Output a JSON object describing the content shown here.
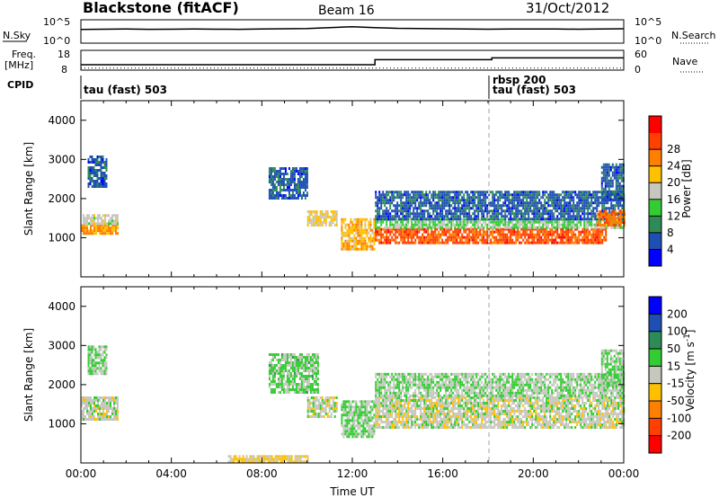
{
  "header": {
    "station": "Blackstone (fitACF)",
    "beam": "Beam 16",
    "date": "31/Oct/2012"
  },
  "summary": {
    "nsky_label": "N.Sky",
    "nsearch_label": "N.Search",
    "freq_label_line1": "Freq.",
    "freq_label_line2": "[MHz]",
    "nave_label": "Nave",
    "cpid_label": "CPID",
    "noise_ticks": [
      "10^5",
      "10^0"
    ],
    "freq_ticks": [
      "18",
      "8"
    ],
    "nave_ticks": [
      "60",
      "0"
    ],
    "cpid_segments": [
      "tau (fast) 503",
      "rbsp 200",
      "tau (fast) 503"
    ]
  },
  "colors": {
    "power": [
      "#0000ff",
      "#1e4fb4",
      "#2e8b57",
      "#33cc33",
      "#c7c7c0",
      "#ffc000",
      "#ff8000",
      "#ff4000",
      "#ff0000"
    ],
    "velocity": [
      "#ff0000",
      "#ff4000",
      "#ff8000",
      "#ffc000",
      "#c7c7c0",
      "#33cc33",
      "#2e8b57",
      "#1e4fb4",
      "#0000ff"
    ]
  },
  "chart_data": [
    {
      "type": "line",
      "title": "Blackstone (fitACF)",
      "series": [
        {
          "name": "N.Sky",
          "x": [
            "00:00",
            "01:00",
            "02:00",
            "03:00",
            "04:00",
            "05:00",
            "06:00",
            "07:00",
            "08:00",
            "09:00",
            "10:00",
            "11:00",
            "12:00",
            "13:00",
            "14:00",
            "15:00",
            "16:00",
            "17:00",
            "18:00",
            "19:00",
            "20:00",
            "21:00",
            "22:00",
            "23:00",
            "24:00"
          ],
          "values": [
            1000,
            1200,
            1300,
            1100,
            1200,
            1300,
            1200,
            1100,
            1300,
            1500,
            1800,
            3000,
            5000,
            3000,
            2000,
            1800,
            1500,
            1400,
            1200,
            1300,
            1400,
            1300,
            1200,
            1300,
            1500
          ]
        },
        {
          "name": "Freq.",
          "x": [
            "00:00",
            "13:00",
            "13:00",
            "18:10",
            "18:10",
            "24:00"
          ],
          "values": [
            10.5,
            10.5,
            13.3,
            13.3,
            14.3,
            14.3
          ]
        },
        {
          "name": "Nave",
          "x": [
            "00:00",
            "13:00",
            "18:10",
            "24:00"
          ],
          "values": [
            4,
            4,
            4,
            4
          ]
        }
      ]
    },
    {
      "type": "heatmap",
      "variable": "Power",
      "xlabel": "",
      "ylabel": "Slant Range [km]",
      "zlabel": "Power [dB]",
      "xlim": [
        0,
        24
      ],
      "ylim": [
        0,
        4500
      ],
      "yticks": [
        1000,
        2000,
        3000,
        4000
      ],
      "colorbar_ticks": [
        4,
        8,
        12,
        16,
        20,
        24,
        28
      ],
      "bands": [
        {
          "t": [
            0.0,
            1.6
          ],
          "range_km": [
            1100,
            1350
          ],
          "value": 22
        },
        {
          "t": [
            0.0,
            1.6
          ],
          "range_km": [
            1350,
            1600
          ],
          "value": 16
        },
        {
          "t": [
            0.3,
            1.1
          ],
          "range_km": [
            2300,
            3100
          ],
          "value": 6
        },
        {
          "t": [
            8.3,
            10.0
          ],
          "range_km": [
            2000,
            2800
          ],
          "value": 6
        },
        {
          "t": [
            10.0,
            11.3
          ],
          "range_km": [
            1300,
            1700
          ],
          "value": 18
        },
        {
          "t": [
            11.5,
            13.0
          ],
          "range_km": [
            700,
            1500
          ],
          "value": 20
        },
        {
          "t": [
            13.0,
            23.2
          ],
          "range_km": [
            900,
            1250
          ],
          "value": 26
        },
        {
          "t": [
            13.0,
            24.0
          ],
          "range_km": [
            1250,
            1500
          ],
          "value": 14
        },
        {
          "t": [
            13.0,
            24.0
          ],
          "range_km": [
            1500,
            2200
          ],
          "value": 6
        },
        {
          "t": [
            22.8,
            24.0
          ],
          "range_km": [
            1300,
            1700
          ],
          "value": 24
        },
        {
          "t": [
            23.0,
            24.0
          ],
          "range_km": [
            2000,
            2900
          ],
          "value": 6
        }
      ]
    },
    {
      "type": "heatmap",
      "variable": "Velocity",
      "xlabel": "Time UT",
      "ylabel": "Slant Range [km]",
      "zlabel": "Velocity [m s^-1]",
      "xlim": [
        0,
        24
      ],
      "ylim": [
        0,
        4500
      ],
      "xticks": [
        "00:00",
        "04:00",
        "08:00",
        "12:00",
        "16:00",
        "20:00",
        "00:00"
      ],
      "yticks": [
        1000,
        2000,
        3000,
        4000
      ],
      "colorbar_ticks": [
        -200,
        -100,
        -50,
        -15,
        15,
        50,
        100,
        200
      ],
      "bands": [
        {
          "t": [
            0.0,
            1.6
          ],
          "range_km": [
            1100,
            1700
          ],
          "value": 0
        },
        {
          "t": [
            0.3,
            1.1
          ],
          "range_km": [
            2300,
            3000
          ],
          "value": 30
        },
        {
          "t": [
            6.5,
            10.0
          ],
          "range_km": [
            0,
            200
          ],
          "value": -30
        },
        {
          "t": [
            8.3,
            10.5
          ],
          "range_km": [
            1800,
            2800
          ],
          "value": 40
        },
        {
          "t": [
            10.0,
            11.3
          ],
          "range_km": [
            1200,
            1700
          ],
          "value": 0
        },
        {
          "t": [
            11.5,
            13.0
          ],
          "range_km": [
            700,
            1600
          ],
          "value": 30
        },
        {
          "t": [
            13.0,
            24.0
          ],
          "range_km": [
            900,
            1700
          ],
          "value": 0
        },
        {
          "t": [
            13.0,
            24.0
          ],
          "range_km": [
            1700,
            2300
          ],
          "value": 20
        },
        {
          "t": [
            23.0,
            24.0
          ],
          "range_km": [
            2000,
            2900
          ],
          "value": 30
        }
      ]
    }
  ]
}
